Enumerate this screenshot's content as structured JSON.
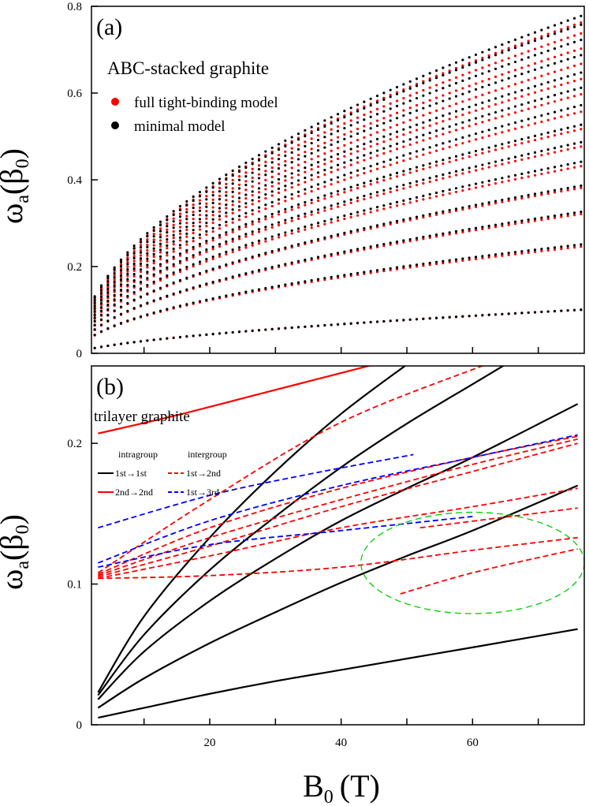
{
  "chart_data": [
    {
      "type": "scatter",
      "panel_label": "(a)",
      "title": "ABC-stacked graphite",
      "ylabel_main": "ω",
      "ylabel_sub": "a",
      "ylabel_paren": "(β",
      "ylabel_paren_sub": "0",
      "ylabel_close": ")",
      "ylim": [
        0,
        0.8
      ],
      "xlim": [
        2,
        77
      ],
      "yticks": [
        0,
        0.2,
        0.4,
        0.6,
        0.8
      ],
      "ytick_labels": [
        "0",
        "0.2",
        "0.4",
        "0.6",
        "0.8"
      ],
      "xticks": [
        10,
        20,
        30,
        40,
        50,
        60,
        70
      ],
      "grid": false,
      "legend_position": "top-left",
      "series": [
        {
          "name": "full tight-binding model",
          "color": "#ff0000",
          "marker": "dot",
          "n_levels": 14,
          "values_at_B": [
            {
              "B": 76,
              "omega": [
                0.1,
                0.245,
                0.32,
                0.38,
                0.43,
                0.475,
                0.515,
                0.555,
                0.595,
                0.63,
                0.665,
                0.7,
                0.735,
                0.76
              ]
            }
          ]
        },
        {
          "name": "minimal model",
          "color": "#000000",
          "marker": "dot",
          "n_levels": 14,
          "values_at_B": [
            {
              "B": 76,
              "omega": [
                0.1,
                0.25,
                0.325,
                0.385,
                0.44,
                0.485,
                0.525,
                0.57,
                0.61,
                0.645,
                0.685,
                0.72,
                0.755,
                0.775
              ]
            }
          ]
        }
      ]
    },
    {
      "type": "line",
      "panel_label": "(b)",
      "title": "trilayer graphite",
      "xlabel_main": "B",
      "xlabel_sub": "0",
      "xlabel_unit": "(T)",
      "ylabel_main": "ω",
      "ylabel_sub": "a",
      "ylabel_paren": "(β",
      "ylabel_paren_sub": "0",
      "ylabel_close": ")",
      "xlim": [
        2,
        77
      ],
      "ylim": [
        0,
        0.255
      ],
      "xticks": [
        20,
        40,
        60
      ],
      "xtick_labels": [
        "20",
        "40",
        "60"
      ],
      "xticks_minor": [
        10,
        30,
        50,
        70
      ],
      "yticks": [
        0,
        0.1,
        0.2
      ],
      "ytick_labels": [
        "0",
        "0.1",
        "0.2"
      ],
      "grid": false,
      "legend": {
        "header_left": "intragroup",
        "header_right": "intergroup",
        "entries": [
          {
            "label": "1st→1st",
            "color": "#000000",
            "style": "solid"
          },
          {
            "label": "2nd→2nd",
            "color": "#ff0000",
            "style": "solid"
          },
          {
            "label": "1st→2nd",
            "color": "#ff0000",
            "style": "dashed"
          },
          {
            "label": "1st→3rd",
            "color": "#0000ff",
            "style": "dashed"
          }
        ]
      },
      "series": [
        {
          "group": "1st→1st",
          "color": "#000000",
          "style": "solid",
          "x": [
            3,
            10,
            20,
            30,
            40,
            50,
            60,
            76
          ],
          "y": [
            0.005,
            0.012,
            0.022,
            0.031,
            0.039,
            0.047,
            0.055,
            0.068
          ]
        },
        {
          "group": "1st→1st",
          "color": "#000000",
          "style": "solid",
          "x": [
            3,
            10,
            20,
            30,
            40,
            50,
            60,
            76
          ],
          "y": [
            0.012,
            0.033,
            0.058,
            0.08,
            0.101,
            0.12,
            0.138,
            0.17
          ]
        },
        {
          "group": "1st→1st",
          "color": "#000000",
          "style": "solid",
          "x": [
            3,
            10,
            20,
            30,
            40,
            50,
            60,
            76
          ],
          "y": [
            0.018,
            0.052,
            0.088,
            0.118,
            0.145,
            0.168,
            0.19,
            0.228
          ]
        },
        {
          "group": "1st→1st",
          "color": "#000000",
          "style": "solid",
          "x": [
            3,
            10,
            20,
            30,
            40,
            50,
            60,
            65
          ],
          "y": [
            0.021,
            0.064,
            0.11,
            0.148,
            0.183,
            0.214,
            0.242,
            0.256
          ]
        },
        {
          "group": "1st→1st",
          "color": "#000000",
          "style": "solid",
          "x": [
            3,
            10,
            20,
            30,
            40,
            50
          ],
          "y": [
            0.023,
            0.077,
            0.133,
            0.18,
            0.221,
            0.256
          ]
        },
        {
          "group": "2nd→2nd",
          "color": "#ff0000",
          "style": "solid",
          "x": [
            3,
            15,
            30,
            45
          ],
          "y": [
            0.207,
            0.22,
            0.238,
            0.256
          ]
        },
        {
          "group": "1st→2nd",
          "color": "#ff0000",
          "style": "dashed",
          "x": [
            3,
            20,
            40,
            62
          ],
          "y": [
            0.108,
            0.16,
            0.215,
            0.256
          ]
        },
        {
          "group": "1st→2nd",
          "color": "#ff0000",
          "style": "dashed",
          "x": [
            3,
            20,
            40,
            60,
            76
          ],
          "y": [
            0.107,
            0.14,
            0.168,
            0.19,
            0.205
          ]
        },
        {
          "group": "1st→2nd",
          "color": "#ff0000",
          "style": "dashed",
          "x": [
            3,
            20,
            40,
            60,
            76
          ],
          "y": [
            0.106,
            0.133,
            0.16,
            0.185,
            0.203
          ]
        },
        {
          "group": "1st→2nd",
          "color": "#ff0000",
          "style": "dashed",
          "x": [
            3,
            20,
            40,
            60,
            76
          ],
          "y": [
            0.105,
            0.127,
            0.155,
            0.18,
            0.2
          ]
        },
        {
          "group": "1st→2nd",
          "color": "#ff0000",
          "style": "dashed",
          "x": [
            3,
            20,
            40,
            60,
            76
          ],
          "y": [
            0.104,
            0.12,
            0.14,
            0.155,
            0.168
          ]
        },
        {
          "group": "1st→2nd",
          "color": "#ff0000",
          "style": "dashed",
          "x": [
            3,
            20,
            40,
            60,
            76
          ],
          "y": [
            0.104,
            0.106,
            0.112,
            0.124,
            0.133
          ]
        },
        {
          "group": "1st→2nd",
          "color": "#ff0000",
          "style": "dashed",
          "x": [
            52,
            64,
            76
          ],
          "y": [
            0.14,
            0.147,
            0.154
          ]
        },
        {
          "group": "1st→2nd",
          "color": "#ff0000",
          "style": "dashed",
          "x": [
            49,
            60,
            76
          ],
          "y": [
            0.093,
            0.108,
            0.125
          ]
        },
        {
          "group": "1st→3rd",
          "color": "#0000ff",
          "style": "dashed",
          "x": [
            3,
            20,
            35,
            51
          ],
          "y": [
            0.14,
            0.163,
            0.178,
            0.192
          ]
        },
        {
          "group": "1st→3rd",
          "color": "#0000ff",
          "style": "dashed",
          "x": [
            3,
            20,
            40,
            60,
            76
          ],
          "y": [
            0.115,
            0.145,
            0.17,
            0.19,
            0.206
          ]
        },
        {
          "group": "1st→3rd",
          "color": "#0000ff",
          "style": "dashed",
          "x": [
            3,
            20,
            40,
            60
          ],
          "y": [
            0.112,
            0.128,
            0.138,
            0.148
          ]
        }
      ],
      "annotation": {
        "shape": "ellipse",
        "color": "#00cc00",
        "style": "dashed",
        "cx": 60,
        "cy": 0.115,
        "rx": 17,
        "ry": 0.036
      }
    }
  ]
}
